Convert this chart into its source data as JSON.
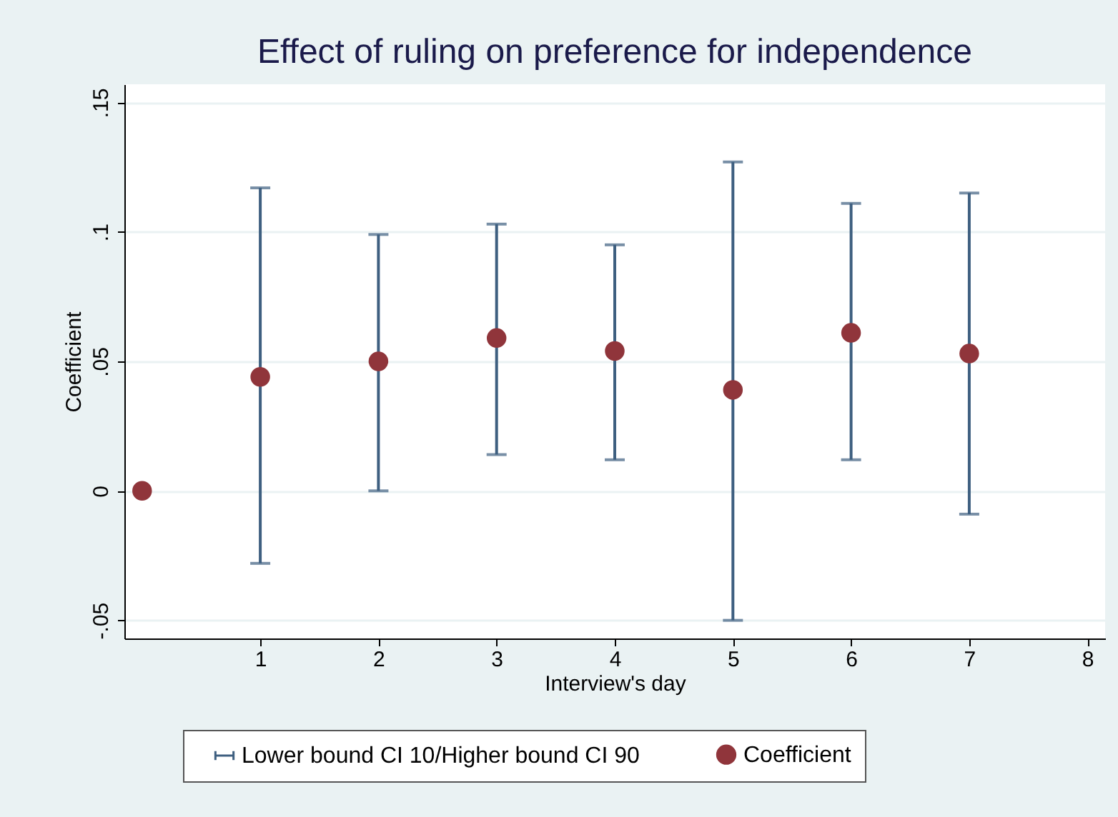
{
  "chart_data": {
    "type": "scatter",
    "title": "Effect of ruling on preference for independence",
    "xlabel": "Interview's day",
    "ylabel": "Coefficient",
    "xlim": [
      -0.15,
      8.15
    ],
    "xticks": [
      1,
      2,
      3,
      4,
      5,
      6,
      7,
      8
    ],
    "ylim": [
      -0.057,
      0.157
    ],
    "yticks": [
      {
        "value": -0.05,
        "label": "-.05"
      },
      {
        "value": 0,
        "label": "0"
      },
      {
        "value": 0.05,
        "label": ".05"
      },
      {
        "value": 0.1,
        "label": ".1"
      },
      {
        "value": 0.15,
        "label": ".15"
      }
    ],
    "grid": "y",
    "legend": "bottom",
    "marker": "circle",
    "series": [
      {
        "name": "Lower bound CI 10/Higher bound CI 90",
        "color": "#3e5f80"
      },
      {
        "name": "Coefficient",
        "color": "#90353b",
        "x": [
          0,
          1,
          2,
          3,
          4,
          5,
          6,
          7
        ],
        "values": [
          0.0,
          0.044,
          0.05,
          0.059,
          0.054,
          0.039,
          0.061,
          0.053
        ],
        "errors": [
          null,
          [
            -0.028,
            0.117
          ],
          [
            0.0,
            0.099
          ],
          [
            0.014,
            0.103
          ],
          [
            0.012,
            0.095
          ],
          [
            -0.05,
            0.127
          ],
          [
            0.012,
            0.111
          ],
          [
            -0.009,
            0.115
          ]
        ]
      }
    ]
  }
}
